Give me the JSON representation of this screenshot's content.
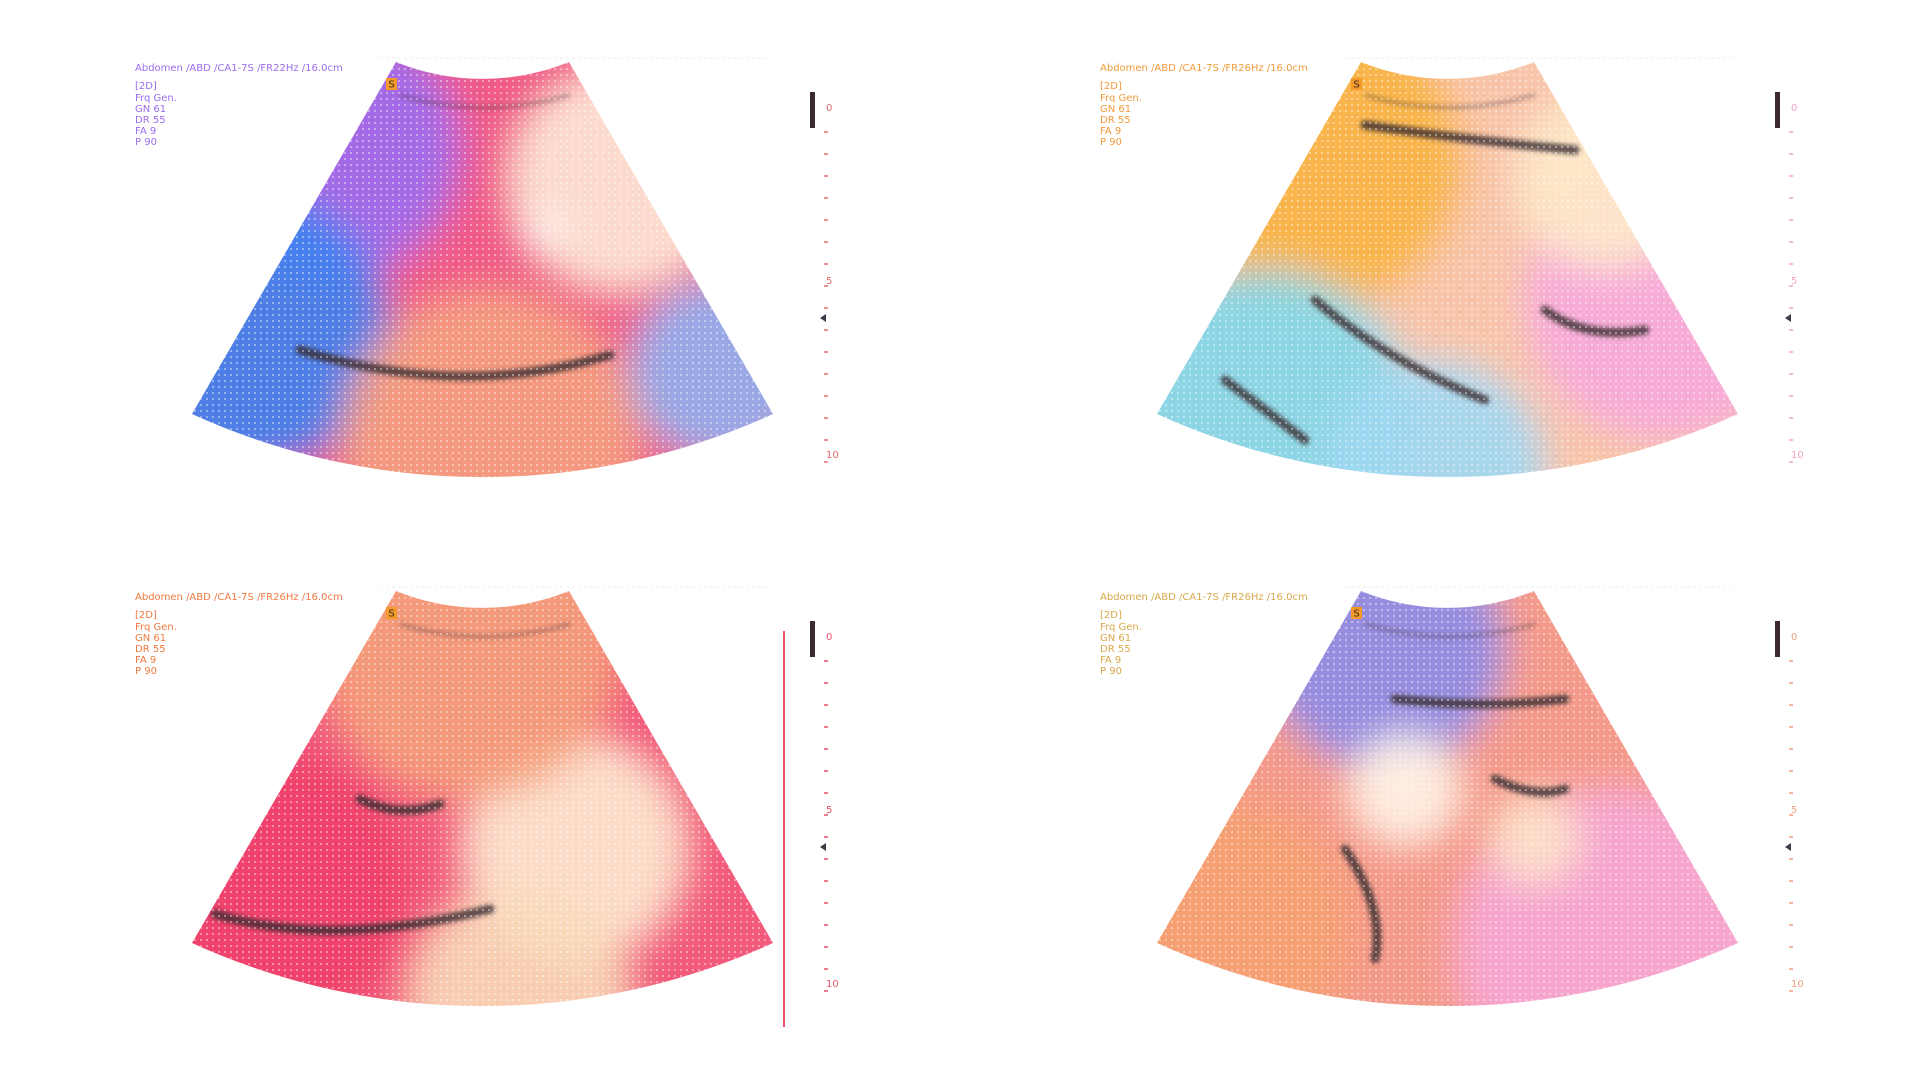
{
  "panels": [
    {
      "header": "Abdomen /ABD /CA1-7S /FR22Hz /16.0cm",
      "mode": "[2D]",
      "params": [
        "Frq Gen.",
        "GN 61",
        "DR 55",
        "FA 9",
        "P 90"
      ],
      "marker": "S",
      "scale_labels": [
        "0",
        "5",
        "10"
      ]
    },
    {
      "header": "Abdomen /ABD /CA1-7S /FR26Hz /16.0cm",
      "mode": "[2D]",
      "params": [
        "Frq Gen.",
        "GN 61",
        "DR 55",
        "FA 9",
        "P 90"
      ],
      "marker": "S",
      "scale_labels": [
        "0",
        "5",
        "10"
      ]
    },
    {
      "header": "Abdomen /ABD /CA1-7S /FR26Hz /16.0cm",
      "mode": "[2D]",
      "params": [
        "Frq Gen.",
        "GN 61",
        "DR 55",
        "FA 9",
        "P 90"
      ],
      "marker": "S",
      "scale_labels": [
        "0",
        "5",
        "10"
      ]
    },
    {
      "header": "Abdomen /ABD /CA1-7S /FR26Hz /16.0cm",
      "mode": "[2D]",
      "params": [
        "Frq Gen.",
        "GN 61",
        "DR 55",
        "FA 9",
        "P 90"
      ],
      "marker": "S",
      "scale_labels": [
        "0",
        "5",
        "10"
      ]
    }
  ]
}
